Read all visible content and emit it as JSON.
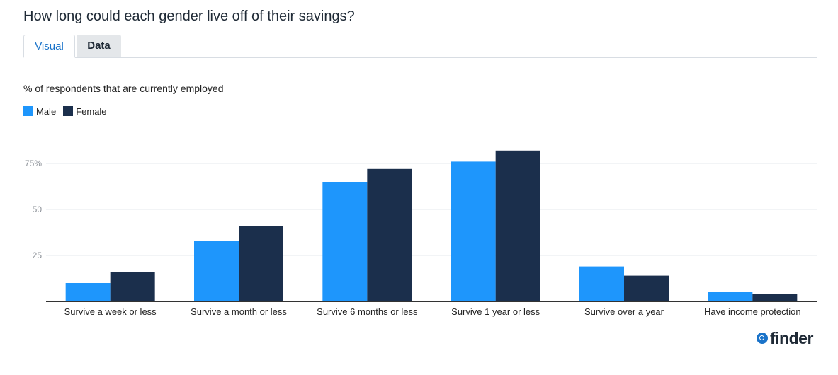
{
  "title": "How long could each gender live off of their savings?",
  "tabs": [
    {
      "label": "Visual",
      "active": true
    },
    {
      "label": "Data",
      "active": false
    }
  ],
  "subtitle": "% of respondents that are currently employed",
  "brand": {
    "name": "finder",
    "color": "#1a73c9"
  },
  "chart_data": {
    "type": "bar",
    "categories": [
      "Survive a week or less",
      "Survive a month or less",
      "Survive 6 months or less",
      "Survive 1 year or less",
      "Survive over a year",
      "Have income protection"
    ],
    "series": [
      {
        "name": "Male",
        "color": "#1e96fc",
        "values": [
          10,
          33,
          65,
          76,
          19,
          5
        ]
      },
      {
        "name": "Female",
        "color": "#1b2f4c",
        "values": [
          16,
          41,
          72,
          82,
          14,
          4
        ]
      }
    ],
    "yticks": [
      25,
      50,
      75
    ],
    "ytick_labels": [
      "25",
      "50",
      "75%"
    ],
    "ylim": [
      0,
      85
    ],
    "grid": true,
    "legend_position": "top-left"
  }
}
